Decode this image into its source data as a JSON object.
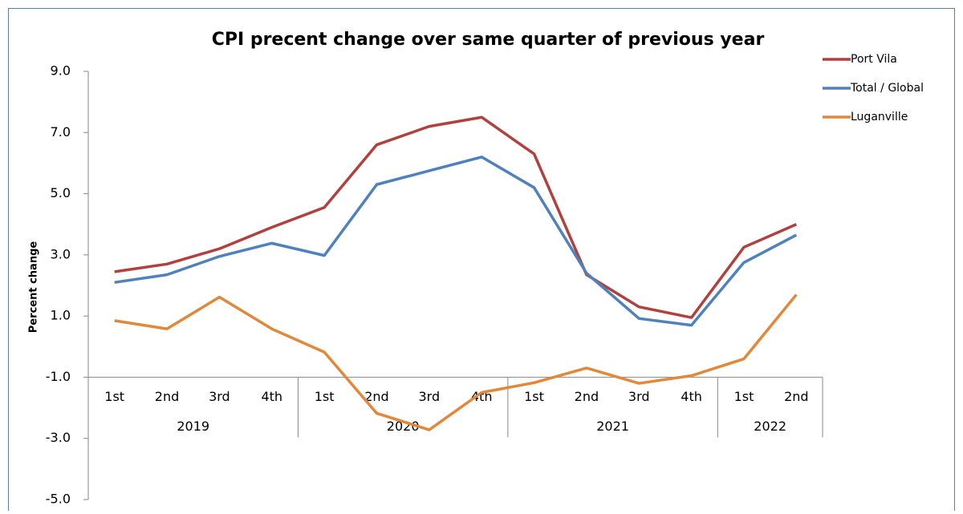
{
  "chart_data": {
    "type": "line",
    "title": "CPI precent change over same quarter of previous year",
    "y_label": "Percent change",
    "category_groups": [
      {
        "name": "2019",
        "categories": [
          "1st",
          "2nd",
          "3rd",
          "4th"
        ]
      },
      {
        "name": "2020",
        "categories": [
          "1st",
          "2nd",
          "3rd",
          "4th"
        ]
      },
      {
        "name": "2021",
        "categories": [
          "1st",
          "2nd",
          "3rd",
          "4th"
        ]
      },
      {
        "name": "2022",
        "categories": [
          "1st",
          "2nd"
        ]
      }
    ],
    "series": [
      {
        "name": "Port Vila",
        "color": "#b0413e",
        "values": [
          2.45,
          2.7,
          3.2,
          3.9,
          4.55,
          6.6,
          7.2,
          7.5,
          6.3,
          2.35,
          1.3,
          0.95,
          3.25,
          4.0
        ]
      },
      {
        "name": "Total / Global",
        "color": "#4f81bd",
        "values": [
          2.1,
          2.35,
          2.95,
          3.38,
          2.98,
          5.3,
          5.75,
          6.2,
          5.2,
          2.4,
          0.92,
          0.7,
          2.75,
          3.65
        ]
      },
      {
        "name": "Luganville",
        "color": "#e0893a",
        "values": [
          0.85,
          0.58,
          1.62,
          0.58,
          -0.18,
          -2.18,
          -2.72,
          -1.5,
          -1.18,
          -0.7,
          -1.2,
          -0.95,
          -0.4,
          1.7
        ]
      }
    ],
    "ylim": [
      -5,
      9
    ],
    "yticks": [
      {
        "value": -5,
        "label": "-5.0"
      },
      {
        "value": -3,
        "label": "-3.0"
      },
      {
        "value": -1,
        "label": "-1.0"
      },
      {
        "value": 1,
        "label": "1.0"
      },
      {
        "value": 3,
        "label": "3.0"
      },
      {
        "value": 5,
        "label": "5.0"
      },
      {
        "value": 7,
        "label": "7.0"
      },
      {
        "value": 9,
        "label": "9.0"
      }
    ],
    "x_axis_crosses": -1,
    "legend": "top-right"
  }
}
